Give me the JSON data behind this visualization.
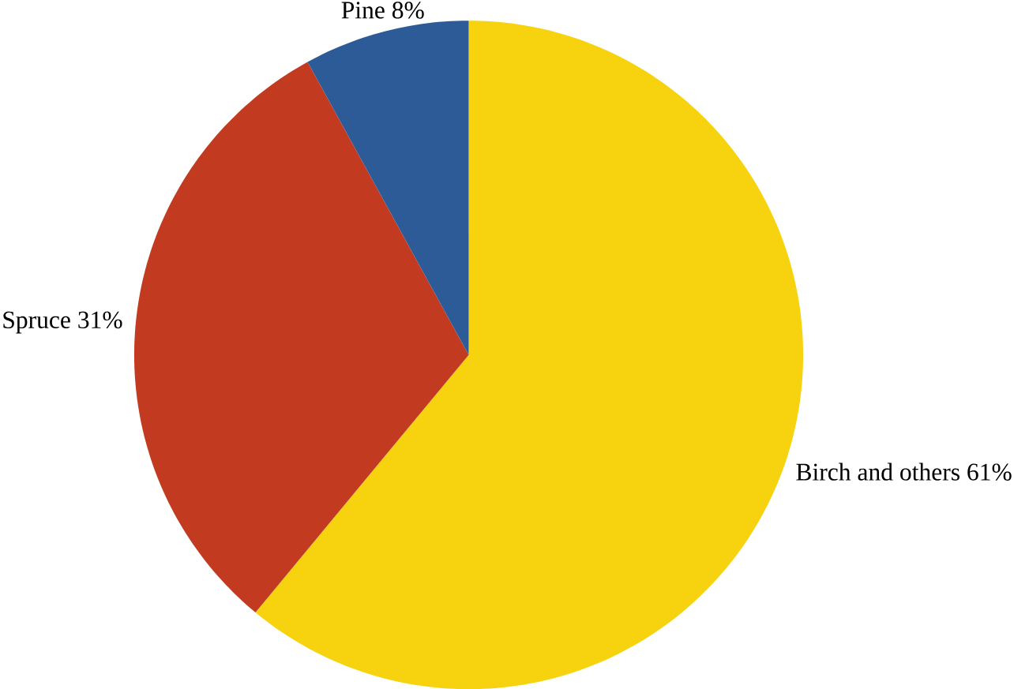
{
  "chart_data": {
    "type": "pie",
    "categories": [
      "Birch and others",
      "Spruce",
      "Pine"
    ],
    "values": [
      61,
      31,
      8
    ],
    "value_labels": [
      "61%",
      "31%",
      "8%"
    ],
    "colors": [
      "#f6d20f",
      "#c23b20",
      "#2d5b98"
    ]
  }
}
